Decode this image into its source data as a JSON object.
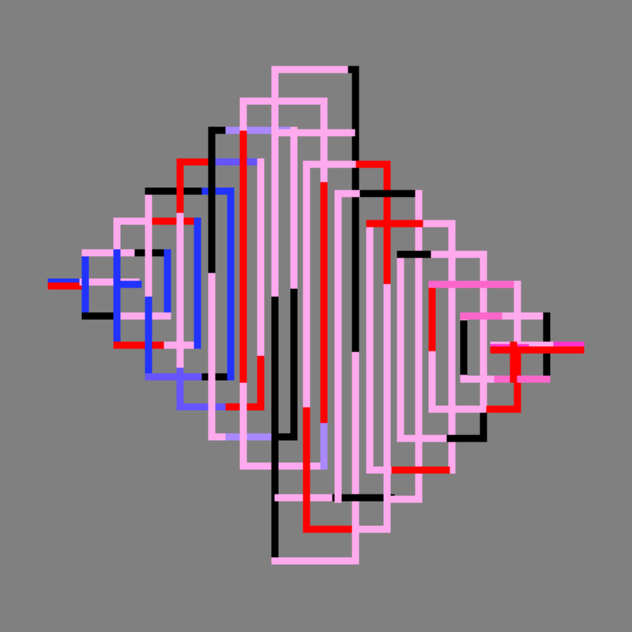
{
  "artwork": {
    "background": "#808080",
    "palette": {
      "black": "#000000",
      "red": "#ff0000",
      "pink": "#ffaaee",
      "light_pink": "#ffaaee",
      "lavender": "#aa88ff",
      "periwinkle": "#6655ff",
      "blue": "#2233ff",
      "hot_pink": "#ff33cc",
      "mid_pink": "#ff66cc"
    }
  }
}
